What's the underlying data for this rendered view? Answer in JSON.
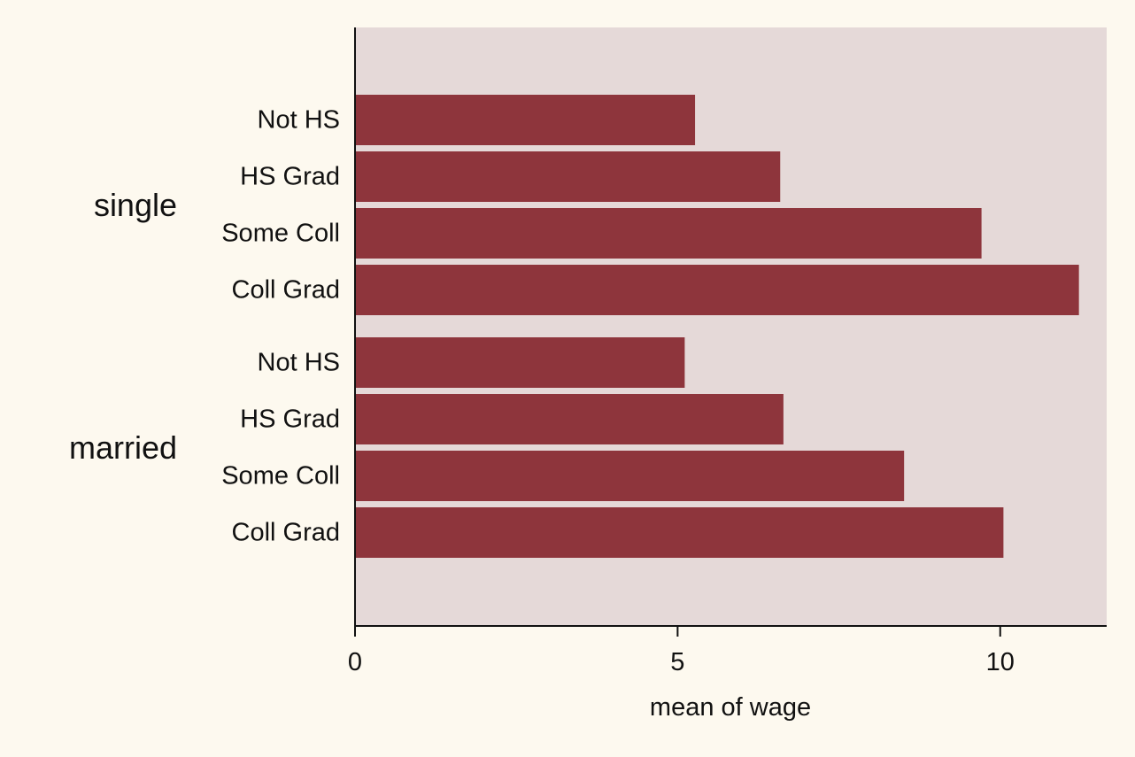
{
  "colors": {
    "page_background": "#fdf9ef",
    "plot_background": "#e5d9d8",
    "bar": "#8e353c",
    "axis": "#111111"
  },
  "chart_data": {
    "type": "bar",
    "orientation": "horizontal",
    "title": "",
    "xlabel": "mean of wage",
    "ylabel": "",
    "xlim": [
      0,
      11.65
    ],
    "xticks": [
      0,
      5,
      10
    ],
    "grid": false,
    "legend": "none",
    "groups": [
      {
        "label": "single",
        "bars": [
          {
            "category": "Not HS",
            "value": 5.27
          },
          {
            "category": "HS Grad",
            "value": 6.59
          },
          {
            "category": "Some Coll",
            "value": 9.71
          },
          {
            "category": "Coll Grad",
            "value": 11.22
          }
        ]
      },
      {
        "label": "married",
        "bars": [
          {
            "category": "Not HS",
            "value": 5.11
          },
          {
            "category": "HS Grad",
            "value": 6.64
          },
          {
            "category": "Some Coll",
            "value": 8.51
          },
          {
            "category": "Coll Grad",
            "value": 10.05
          }
        ]
      }
    ]
  }
}
